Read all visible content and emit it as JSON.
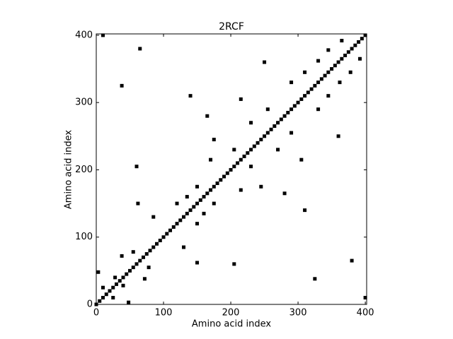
{
  "chart_data": {
    "type": "scatter",
    "title": "2RCF",
    "x_label": "Amino acid index",
    "y_label": "Amino acid index",
    "color": "#000000",
    "xlim": [
      0,
      402
    ],
    "ylim": [
      0,
      402
    ],
    "xticks": [
      0,
      100,
      200,
      300,
      400
    ],
    "yticks": [
      0,
      100,
      200,
      300,
      400
    ],
    "x": [
      0,
      5,
      10,
      15,
      20,
      25,
      30,
      35,
      40,
      45,
      50,
      55,
      60,
      65,
      70,
      75,
      80,
      85,
      90,
      95,
      100,
      105,
      110,
      115,
      120,
      125,
      130,
      135,
      140,
      145,
      150,
      155,
      160,
      165,
      170,
      175,
      180,
      185,
      190,
      195,
      200,
      205,
      210,
      215,
      220,
      225,
      230,
      235,
      240,
      245,
      250,
      255,
      260,
      265,
      270,
      275,
      280,
      285,
      290,
      295,
      300,
      305,
      310,
      315,
      320,
      325,
      330,
      335,
      340,
      345,
      350,
      355,
      360,
      365,
      370,
      375,
      380,
      385,
      390,
      395,
      400,
      3,
      10,
      28,
      38,
      55,
      62,
      85,
      120,
      135,
      150,
      170,
      175,
      205,
      230,
      255,
      290,
      310,
      330,
      345,
      365,
      10,
      65,
      38,
      165,
      250,
      140,
      215,
      60,
      48,
      25,
      40,
      72,
      78,
      150,
      130,
      150,
      160,
      175,
      215,
      245,
      230,
      270,
      290,
      330,
      345,
      362,
      378,
      392,
      400,
      380,
      325,
      280,
      360,
      310,
      305,
      205
    ],
    "y": [
      0,
      5,
      10,
      15,
      20,
      25,
      30,
      35,
      40,
      45,
      50,
      55,
      60,
      65,
      70,
      75,
      80,
      85,
      90,
      95,
      100,
      105,
      110,
      115,
      120,
      125,
      130,
      135,
      140,
      145,
      150,
      155,
      160,
      165,
      170,
      175,
      180,
      185,
      190,
      195,
      200,
      205,
      210,
      215,
      220,
      225,
      230,
      235,
      240,
      245,
      250,
      255,
      260,
      265,
      270,
      275,
      280,
      285,
      290,
      295,
      300,
      305,
      310,
      315,
      320,
      325,
      330,
      335,
      340,
      345,
      350,
      355,
      360,
      365,
      370,
      375,
      380,
      385,
      390,
      395,
      400,
      48,
      25,
      40,
      72,
      78,
      150,
      130,
      150,
      160,
      175,
      215,
      245,
      230,
      270,
      290,
      330,
      345,
      362,
      378,
      392,
      400,
      380,
      325,
      280,
      360,
      310,
      305,
      205,
      3,
      10,
      28,
      38,
      55,
      62,
      85,
      120,
      135,
      150,
      170,
      175,
      205,
      230,
      255,
      290,
      310,
      330,
      345,
      365,
      10,
      65,
      38,
      165,
      250,
      140,
      215,
      60
    ]
  }
}
